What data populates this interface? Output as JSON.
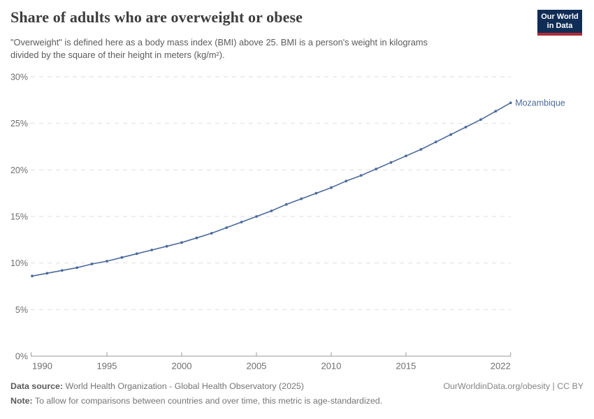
{
  "header": {
    "title": "Share of adults who are overweight or obese",
    "subtitle_lines": [
      "\"Overweight\" is defined here as a body mass index (BMI) above 25. BMI is a person's weight in kilograms",
      "divided by the square of their height in meters (kg/m²)."
    ],
    "logo": {
      "line1": "Our World",
      "line2": "in Data"
    }
  },
  "chart_data": {
    "type": "line",
    "title": "Share of adults who are overweight or obese",
    "xlabel": "",
    "ylabel": "",
    "xlim": [
      1990,
      2022
    ],
    "ylim": [
      0,
      30
    ],
    "x_ticks": [
      1990,
      1995,
      2000,
      2005,
      2010,
      2015,
      2022
    ],
    "y_ticks": [
      0,
      5,
      10,
      15,
      20,
      25,
      30
    ],
    "y_tick_suffix": "%",
    "grid": "horizontal-dashed",
    "legend": "end-of-line-label",
    "series": [
      {
        "name": "Mozambique",
        "color": "#4c6a9c",
        "x": [
          1990,
          1991,
          1992,
          1993,
          1994,
          1995,
          1996,
          1997,
          1998,
          1999,
          2000,
          2001,
          2002,
          2003,
          2004,
          2005,
          2006,
          2007,
          2008,
          2009,
          2010,
          2011,
          2012,
          2013,
          2014,
          2015,
          2016,
          2017,
          2018,
          2019,
          2020,
          2021,
          2022
        ],
        "values": [
          8.6,
          8.9,
          9.2,
          9.5,
          9.9,
          10.2,
          10.6,
          11.0,
          11.4,
          11.8,
          12.2,
          12.7,
          13.2,
          13.8,
          14.4,
          15.0,
          15.6,
          16.3,
          16.9,
          17.5,
          18.1,
          18.8,
          19.4,
          20.1,
          20.8,
          21.5,
          22.2,
          23.0,
          23.8,
          24.6,
          25.4,
          26.3,
          27.2
        ]
      }
    ]
  },
  "footer": {
    "data_source_label": "Data source:",
    "data_source_text": " World Health Organization - Global Health Observatory (2025)",
    "note_label": "Note:",
    "note_text": " To allow for comparisons between countries and over time, this metric is age-standardized.",
    "citation": "OurWorldinData.org/obesity | CC BY"
  },
  "colors": {
    "line": "#4c6a9c",
    "gridline": "#dedede",
    "axis": "#9a9a9a",
    "tick_text": "#6e6e6e",
    "logo_bg": "#102d55",
    "logo_accent": "#b02c36"
  }
}
